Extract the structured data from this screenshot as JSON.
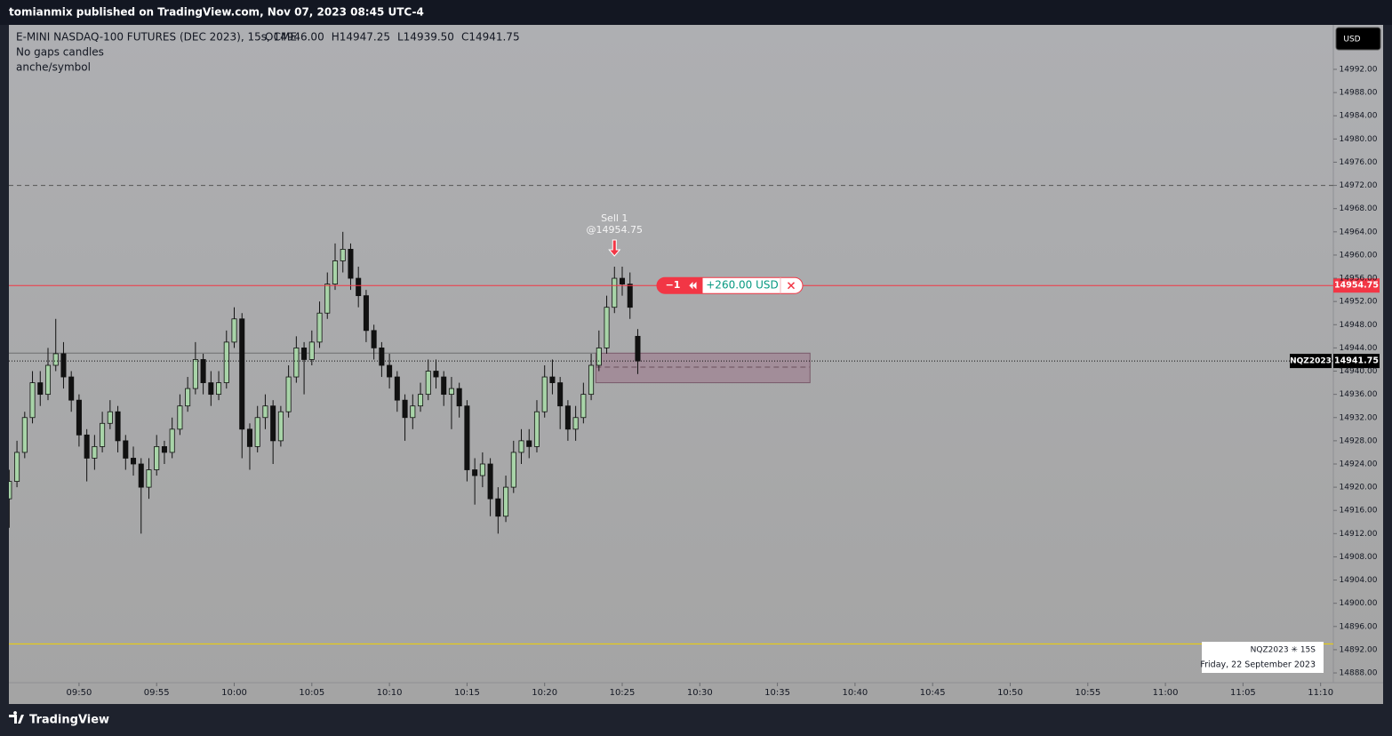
{
  "chart_data": {
    "type": "candlestick",
    "publisher": "tomianmix published on TradingView.com, Nov 07, 2023 08:45 UTC-4",
    "title": "E-MINI NASDAQ-100 FUTURES (DEC 2023), 15s, CME",
    "legend_values": [
      "O14946.00",
      "H14947.25",
      "L14939.50",
      "C14941.75"
    ],
    "subtitles": [
      "No gaps candles",
      "anche/symbol"
    ],
    "currency": "USD",
    "up_color": "#a8d4a8",
    "down_color": "#111111",
    "x": [
      585.5,
      586,
      586.5,
      587,
      587.5,
      588,
      588.5,
      589,
      589.5,
      590,
      590.5,
      591,
      591.5,
      592,
      592.5,
      593,
      593.5,
      594,
      594.5,
      595,
      595.5,
      596,
      596.5,
      597,
      597.5,
      598,
      598.5,
      599,
      599.5,
      600,
      600.5,
      601,
      601.5,
      602,
      602.5,
      603,
      603.5,
      604,
      604.5,
      605,
      605.5,
      606,
      606.5,
      607,
      607.5,
      608,
      608.5,
      609,
      609.5,
      610,
      610.5,
      611,
      611.5,
      612,
      612.5,
      613,
      613.5,
      614,
      614.5,
      615,
      615.5,
      616,
      616.5,
      617,
      617.5,
      618,
      618.5,
      619,
      619.5,
      620,
      620.5,
      621,
      621.5,
      622,
      622.5,
      623,
      623.5,
      624,
      624.5,
      625,
      625.5,
      626
    ],
    "open": [
      14918,
      14921,
      14926,
      14932,
      14938,
      14936,
      14941,
      14943,
      14939,
      14935,
      14929,
      14925,
      14927,
      14931,
      14933,
      14928,
      14925,
      14924,
      14920,
      14923,
      14927,
      14926,
      14930,
      14934,
      14937,
      14942,
      14938,
      14936,
      14938,
      14945,
      14949,
      14930,
      14927,
      14932,
      14934,
      14928,
      14933,
      14939,
      14944,
      14942,
      14945,
      14950,
      14955,
      14959,
      14961,
      14956,
      14953,
      14947,
      14944,
      14941,
      14939,
      14935,
      14932,
      14934,
      14936,
      14940,
      14939,
      14936,
      14937,
      14934,
      14923,
      14922,
      14924,
      14918,
      14915,
      14920,
      14926,
      14928,
      14927,
      14933,
      14939,
      14938,
      14934,
      14930,
      14932,
      14936,
      14941,
      14944,
      14951,
      14956,
      14955,
      14946
    ],
    "high": [
      14923,
      14928,
      14933,
      14940,
      14940,
      14944,
      14949,
      14945,
      14940,
      14936,
      14930,
      14929,
      14933,
      14935,
      14934,
      14929,
      14927,
      14925,
      14925,
      14929,
      14928,
      14932,
      14936,
      14939,
      14945,
      14943,
      14940,
      14940,
      14947,
      14951,
      14950,
      14931,
      14934,
      14936,
      14935,
      14934,
      14941,
      14946,
      14945,
      14947,
      14952,
      14957,
      14962,
      14964,
      14962,
      14958,
      14954,
      14948,
      14945,
      14943,
      14940,
      14936,
      14936,
      14938,
      14942,
      14942,
      14940,
      14939,
      14938,
      14935,
      14925,
      14926,
      14925,
      14920,
      14922,
      14928,
      14930,
      14930,
      14935,
      14941,
      14942,
      14939,
      14935,
      14934,
      14938,
      14943,
      14947,
      14953,
      14958,
      14958,
      14957,
      14947.25
    ],
    "low": [
      14913,
      14920,
      14925,
      14931,
      14934,
      14935,
      14940,
      14937,
      14933,
      14927,
      14921,
      14923,
      14926,
      14930,
      14926,
      14923,
      14922,
      14912,
      14918,
      14922,
      14924,
      14925,
      14929,
      14933,
      14936,
      14936,
      14934,
      14935,
      14937,
      14944,
      14925,
      14923,
      14926,
      14930,
      14924,
      14927,
      14932,
      14938,
      14936,
      14941,
      14944,
      14949,
      14954,
      14957,
      14954,
      14951,
      14945,
      14942,
      14939,
      14937,
      14933,
      14928,
      14930,
      14933,
      14935,
      14937,
      14934,
      14930,
      14932,
      14921,
      14917,
      14920,
      14915,
      14912,
      14914,
      14919,
      14924,
      14925,
      14926,
      14932,
      14936,
      14930,
      14928,
      14928,
      14931,
      14935,
      14940,
      14943,
      14950,
      14953,
      14949,
      14939.5
    ],
    "close": [
      14921,
      14926,
      14932,
      14938,
      14936,
      14941,
      14943,
      14939,
      14935,
      14929,
      14925,
      14927,
      14931,
      14933,
      14928,
      14925,
      14924,
      14920,
      14923,
      14927,
      14926,
      14930,
      14934,
      14937,
      14942,
      14938,
      14936,
      14938,
      14945,
      14949,
      14930,
      14927,
      14932,
      14934,
      14928,
      14933,
      14939,
      14944,
      14942,
      14945,
      14950,
      14955,
      14959,
      14961,
      14956,
      14953,
      14947,
      14944,
      14941,
      14939,
      14935,
      14932,
      14934,
      14936,
      14940,
      14939,
      14936,
      14937,
      14934,
      14923,
      14922,
      14924,
      14918,
      14915,
      14920,
      14926,
      14928,
      14927,
      14933,
      14939,
      14938,
      14934,
      14930,
      14932,
      14936,
      14941,
      14944,
      14951,
      14956,
      14955,
      14951,
      14941.75
    ],
    "xlim": [
      585.48,
      670.82
    ],
    "xticks": [
      {
        "value": 590,
        "label": "09:50"
      },
      {
        "value": 595,
        "label": "09:55"
      },
      {
        "value": 600,
        "label": "10:00"
      },
      {
        "value": 605,
        "label": "10:05"
      },
      {
        "value": 610,
        "label": "10:10"
      },
      {
        "value": 615,
        "label": "10:15"
      },
      {
        "value": 620,
        "label": "10:20"
      },
      {
        "value": 625,
        "label": "10:25"
      },
      {
        "value": 630,
        "label": "10:30"
      },
      {
        "value": 635,
        "label": "10:35"
      },
      {
        "value": 640,
        "label": "10:40"
      },
      {
        "value": 645,
        "label": "10:45"
      },
      {
        "value": 650,
        "label": "10:50"
      },
      {
        "value": 655,
        "label": "10:55"
      },
      {
        "value": 660,
        "label": "11:00"
      },
      {
        "value": 665,
        "label": "11:05"
      },
      {
        "value": 670,
        "label": "11:10"
      }
    ],
    "ylim": [
      14886.32,
      14999.66
    ],
    "yticks": [
      {
        "value": 14888,
        "label": "14888.00"
      },
      {
        "value": 14892,
        "label": "14892.00"
      },
      {
        "value": 14896,
        "label": "14896.00"
      },
      {
        "value": 14900,
        "label": "14900.00"
      },
      {
        "value": 14904,
        "label": "14904.00"
      },
      {
        "value": 14908,
        "label": "14908.00"
      },
      {
        "value": 14912,
        "label": "14912.00"
      },
      {
        "value": 14916,
        "label": "14916.00"
      },
      {
        "value": 14920,
        "label": "14920.00"
      },
      {
        "value": 14924,
        "label": "14924.00"
      },
      {
        "value": 14928,
        "label": "14928.00"
      },
      {
        "value": 14932,
        "label": "14932.00"
      },
      {
        "value": 14936,
        "label": "14936.00"
      },
      {
        "value": 14940,
        "label": "14940.00"
      },
      {
        "value": 14944,
        "label": "14944.00"
      },
      {
        "value": 14948,
        "label": "14948.00"
      },
      {
        "value": 14952,
        "label": "14952.00"
      },
      {
        "value": 14956,
        "label": "14956.00"
      },
      {
        "value": 14960,
        "label": "14960.00"
      },
      {
        "value": 14964,
        "label": "14964.00"
      },
      {
        "value": 14968,
        "label": "14968.00"
      },
      {
        "value": 14972,
        "label": "14972.00"
      },
      {
        "value": 14976,
        "label": "14976.00"
      },
      {
        "value": 14980,
        "label": "14980.00"
      },
      {
        "value": 14984,
        "label": "14984.00"
      },
      {
        "value": 14988,
        "label": "14988.00"
      },
      {
        "value": 14992,
        "label": "14992.00"
      }
    ],
    "dashed_level": 14972,
    "yellow_level": 14893,
    "position_box": {
      "x": [
        623.3,
        637.1
      ],
      "price": [
        14943.1,
        14938.0
      ],
      "mid": 14940.7
    },
    "sell": {
      "label": "Sell 1",
      "price_label": "@14954.75",
      "x": 624.5,
      "price": 14954.75
    },
    "position": {
      "price": 14954.75,
      "label": "14954.75",
      "qty": "−1",
      "pnl": "+260.00 USD"
    },
    "last_price": {
      "price": 14941.75,
      "symbol": "NQZ2023",
      "label": "14941.75"
    },
    "info": {
      "symbol": "NQZ2023 ✳ 15S",
      "date": "Friday, 22 September 2023"
    },
    "footer": "TradingView"
  }
}
